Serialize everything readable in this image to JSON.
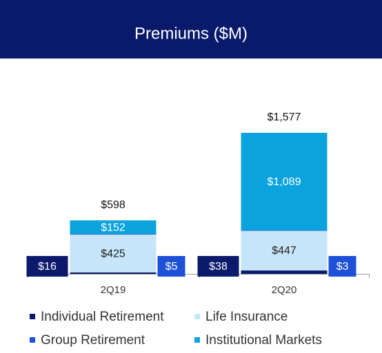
{
  "chart_data": {
    "type": "stacked-bar",
    "title": "Premiums ($M)",
    "categories": [
      "2Q19",
      "2Q20"
    ],
    "series": [
      {
        "name": "Individual Retirement",
        "color": "#0c1a6b",
        "values": [
          16,
          38
        ],
        "value_labels": [
          "$16",
          "$38"
        ]
      },
      {
        "name": "Life Insurance",
        "color": "#c6e5f8",
        "values": [
          425,
          447
        ],
        "value_labels": [
          "$425",
          "$447"
        ]
      },
      {
        "name": "Group Retirement",
        "color": "#1f50d8",
        "values": [
          5,
          3
        ],
        "value_labels": [
          "$5",
          "$3"
        ]
      },
      {
        "name": "Institutional Markets",
        "color": "#0aa3dd",
        "values": [
          152,
          1089
        ],
        "value_labels": [
          "$152",
          "$1,089"
        ]
      }
    ],
    "totals": [
      598,
      1577
    ],
    "total_labels": [
      "$598",
      "$1,577"
    ],
    "ylim": [
      0,
      1800
    ]
  }
}
